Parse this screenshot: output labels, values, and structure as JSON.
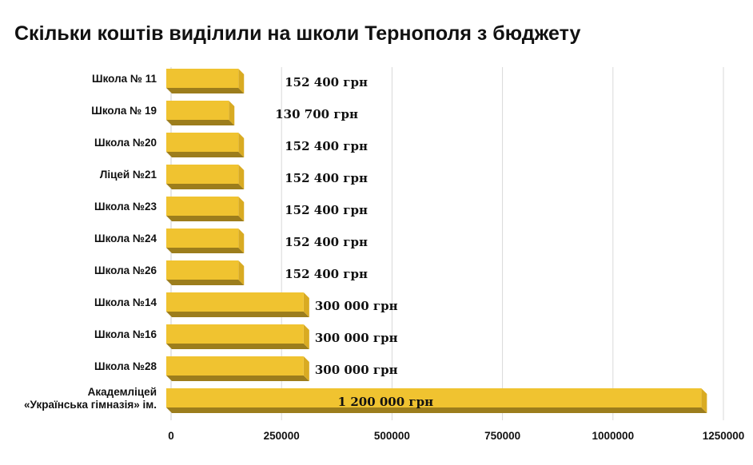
{
  "chart_data": {
    "type": "bar",
    "orientation": "horizontal",
    "title": "Скільки коштів виділили на школи Тернополя з бюджету",
    "categories": [
      "Школа № 11",
      "Школа № 19",
      "Школа №20",
      "Ліцей №21",
      "Школа №23",
      "Школа №24",
      "Школа №26",
      "Школа №14",
      "Школа №16",
      "Школа №28",
      [
        "Академліцей",
        "«Українська гімназія» ім."
      ]
    ],
    "values": [
      152400,
      130700,
      152400,
      152400,
      152400,
      152400,
      152400,
      300000,
      300000,
      300000,
      1200000
    ],
    "data_labels": [
      "152 400 грн",
      "130 700 грн",
      "152 400 грн",
      "152 400 грн",
      "152 400 грн",
      "152 400 грн",
      "152 400 грн",
      "300 000 грн",
      "300 000 грн",
      "300 000 грн",
      "1 200 000 грн"
    ],
    "x_ticks": [
      "0",
      "250000",
      "500000",
      "750000",
      "1000000",
      "1250000"
    ],
    "xlim": [
      0,
      1250000
    ],
    "xlabel": "",
    "ylabel": "",
    "grid": true,
    "bar_color": "#f0c330",
    "bar_shadow_color": "#9c7d1c",
    "grid_color": "#d9d9d9"
  }
}
